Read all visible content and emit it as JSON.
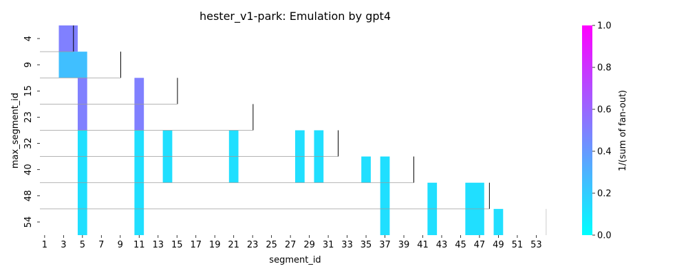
{
  "chart_data": {
    "type": "heatmap",
    "title": "hester_v1-park: Emulation by gpt4",
    "xlabel": "segment_id",
    "ylabel": "max_segment_id",
    "x_tick_labels": [
      "1",
      "3",
      "5",
      "7",
      "9",
      "11",
      "13",
      "15",
      "17",
      "19",
      "21",
      "23",
      "25",
      "27",
      "29",
      "31",
      "33",
      "35",
      "37",
      "39",
      "41",
      "43",
      "45",
      "47",
      "49",
      "51",
      "53"
    ],
    "y_tick_labels": [
      "4",
      "9",
      "15",
      "23",
      "32",
      "40",
      "48",
      "54"
    ],
    "x_range": [
      1,
      54
    ],
    "colorbar": {
      "label": "1/(sum of fan-out)",
      "range": [
        0.0,
        1.0
      ],
      "ticks": [
        "0.0",
        "0.2",
        "0.4",
        "0.6",
        "0.8",
        "1.0"
      ],
      "colormap": "cool",
      "color_low": "#00ffff",
      "color_high": "#ff00ff"
    },
    "cells": [
      {
        "row": 0,
        "x0": 3,
        "x1": 4,
        "value": 0.5
      },
      {
        "row": 1,
        "x0": 3,
        "x1": 5,
        "value": 0.25
      },
      {
        "row": 2,
        "x0": 5,
        "x1": 5,
        "value": 0.5
      },
      {
        "row": 2,
        "x0": 11,
        "x1": 11,
        "value": 0.5
      },
      {
        "row": 3,
        "x0": 5,
        "x1": 5,
        "value": 0.5
      },
      {
        "row": 3,
        "x0": 11,
        "x1": 11,
        "value": 0.5
      },
      {
        "row": 4,
        "x0": 5,
        "x1": 5,
        "value": 0.125
      },
      {
        "row": 4,
        "x0": 11,
        "x1": 11,
        "value": 0.125
      },
      {
        "row": 4,
        "x0": 14,
        "x1": 14,
        "value": 0.125
      },
      {
        "row": 4,
        "x0": 21,
        "x1": 21,
        "value": 0.125
      },
      {
        "row": 4,
        "x0": 28,
        "x1": 28,
        "value": 0.125
      },
      {
        "row": 4,
        "x0": 30,
        "x1": 30,
        "value": 0.125
      },
      {
        "row": 5,
        "x0": 5,
        "x1": 5,
        "value": 0.125
      },
      {
        "row": 5,
        "x0": 11,
        "x1": 11,
        "value": 0.125
      },
      {
        "row": 5,
        "x0": 14,
        "x1": 14,
        "value": 0.125
      },
      {
        "row": 5,
        "x0": 21,
        "x1": 21,
        "value": 0.125
      },
      {
        "row": 5,
        "x0": 28,
        "x1": 28,
        "value": 0.125
      },
      {
        "row": 5,
        "x0": 30,
        "x1": 30,
        "value": 0.125
      },
      {
        "row": 5,
        "x0": 35,
        "x1": 35,
        "value": 0.125
      },
      {
        "row": 5,
        "x0": 37,
        "x1": 37,
        "value": 0.125
      },
      {
        "row": 6,
        "x0": 5,
        "x1": 5,
        "value": 0.125
      },
      {
        "row": 6,
        "x0": 11,
        "x1": 11,
        "value": 0.125
      },
      {
        "row": 6,
        "x0": 37,
        "x1": 37,
        "value": 0.125
      },
      {
        "row": 6,
        "x0": 42,
        "x1": 42,
        "value": 0.125
      },
      {
        "row": 6,
        "x0": 46,
        "x1": 47,
        "value": 0.125
      },
      {
        "row": 7,
        "x0": 5,
        "x1": 5,
        "value": 0.125
      },
      {
        "row": 7,
        "x0": 11,
        "x1": 11,
        "value": 0.125
      },
      {
        "row": 7,
        "x0": 37,
        "x1": 37,
        "value": 0.125
      },
      {
        "row": 7,
        "x0": 42,
        "x1": 42,
        "value": 0.125
      },
      {
        "row": 7,
        "x0": 46,
        "x1": 47,
        "value": 0.125
      },
      {
        "row": 7,
        "x0": 49,
        "x1": 49,
        "value": 0.125
      }
    ],
    "row_separators": [
      {
        "row": 0,
        "end_x": 4
      },
      {
        "row": 1,
        "end_x": 9
      },
      {
        "row": 2,
        "end_x": 15
      },
      {
        "row": 3,
        "end_x": 23
      },
      {
        "row": 4,
        "end_x": 32
      },
      {
        "row": 5,
        "end_x": 40
      },
      {
        "row": 6,
        "end_x": 48
      },
      {
        "row": 7,
        "end_x": 54
      }
    ]
  }
}
